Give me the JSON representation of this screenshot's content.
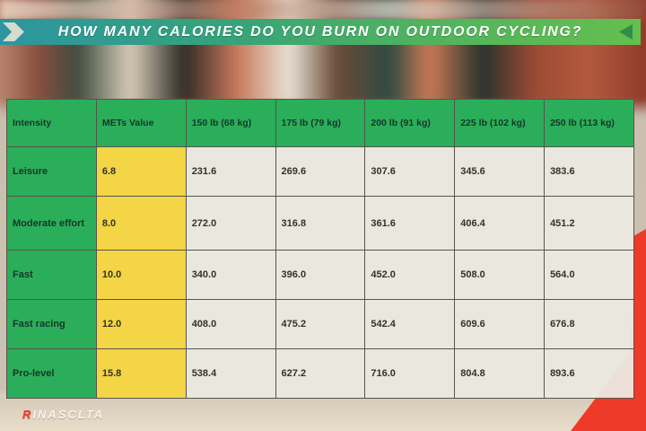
{
  "banner": {
    "title": "HOW MANY CALORIES DO YOU BURN ON OUTDOOR CYCLING?"
  },
  "logo": {
    "prefix": "R",
    "rest": "INASCLTA"
  },
  "colors": {
    "header_green": "#2bae59",
    "mets_yellow": "#f3d545",
    "cell_gray": "#ebe9e2",
    "banner_teal": "#2c96a0",
    "banner_green": "#63bf4e",
    "accent_red": "#ee3a28",
    "table_text_dark": "#15352b"
  },
  "chart_data": {
    "type": "table",
    "title": "HOW MANY CALORIES DO YOU BURN ON OUTDOOR CYCLING?",
    "columns": [
      "Intensity",
      "METs Value",
      "150 lb (68 kg)",
      "175 lb (79 kg)",
      "200 lb (91 kg)",
      "225 lb (102 kg)",
      "250 lb (113 kg)"
    ],
    "rows": [
      [
        "Leisure",
        "6.8",
        "231.6",
        "269.6",
        "307.6",
        "345.6",
        "383.6"
      ],
      [
        "Moderate effort",
        "8.0",
        "272.0",
        "316.8",
        "361.6",
        "406.4",
        "451.2"
      ],
      [
        "Fast",
        "10.0",
        "340.0",
        "396.0",
        "452.0",
        "508.0",
        "564.0"
      ],
      [
        "Fast racing",
        "12.0",
        "408.0",
        "475.2",
        "542.4",
        "609.6",
        "676.8"
      ],
      [
        "Pro-level",
        "15.8",
        "538.4",
        "627.2",
        "716.0",
        "804.8",
        "893.6"
      ]
    ]
  }
}
